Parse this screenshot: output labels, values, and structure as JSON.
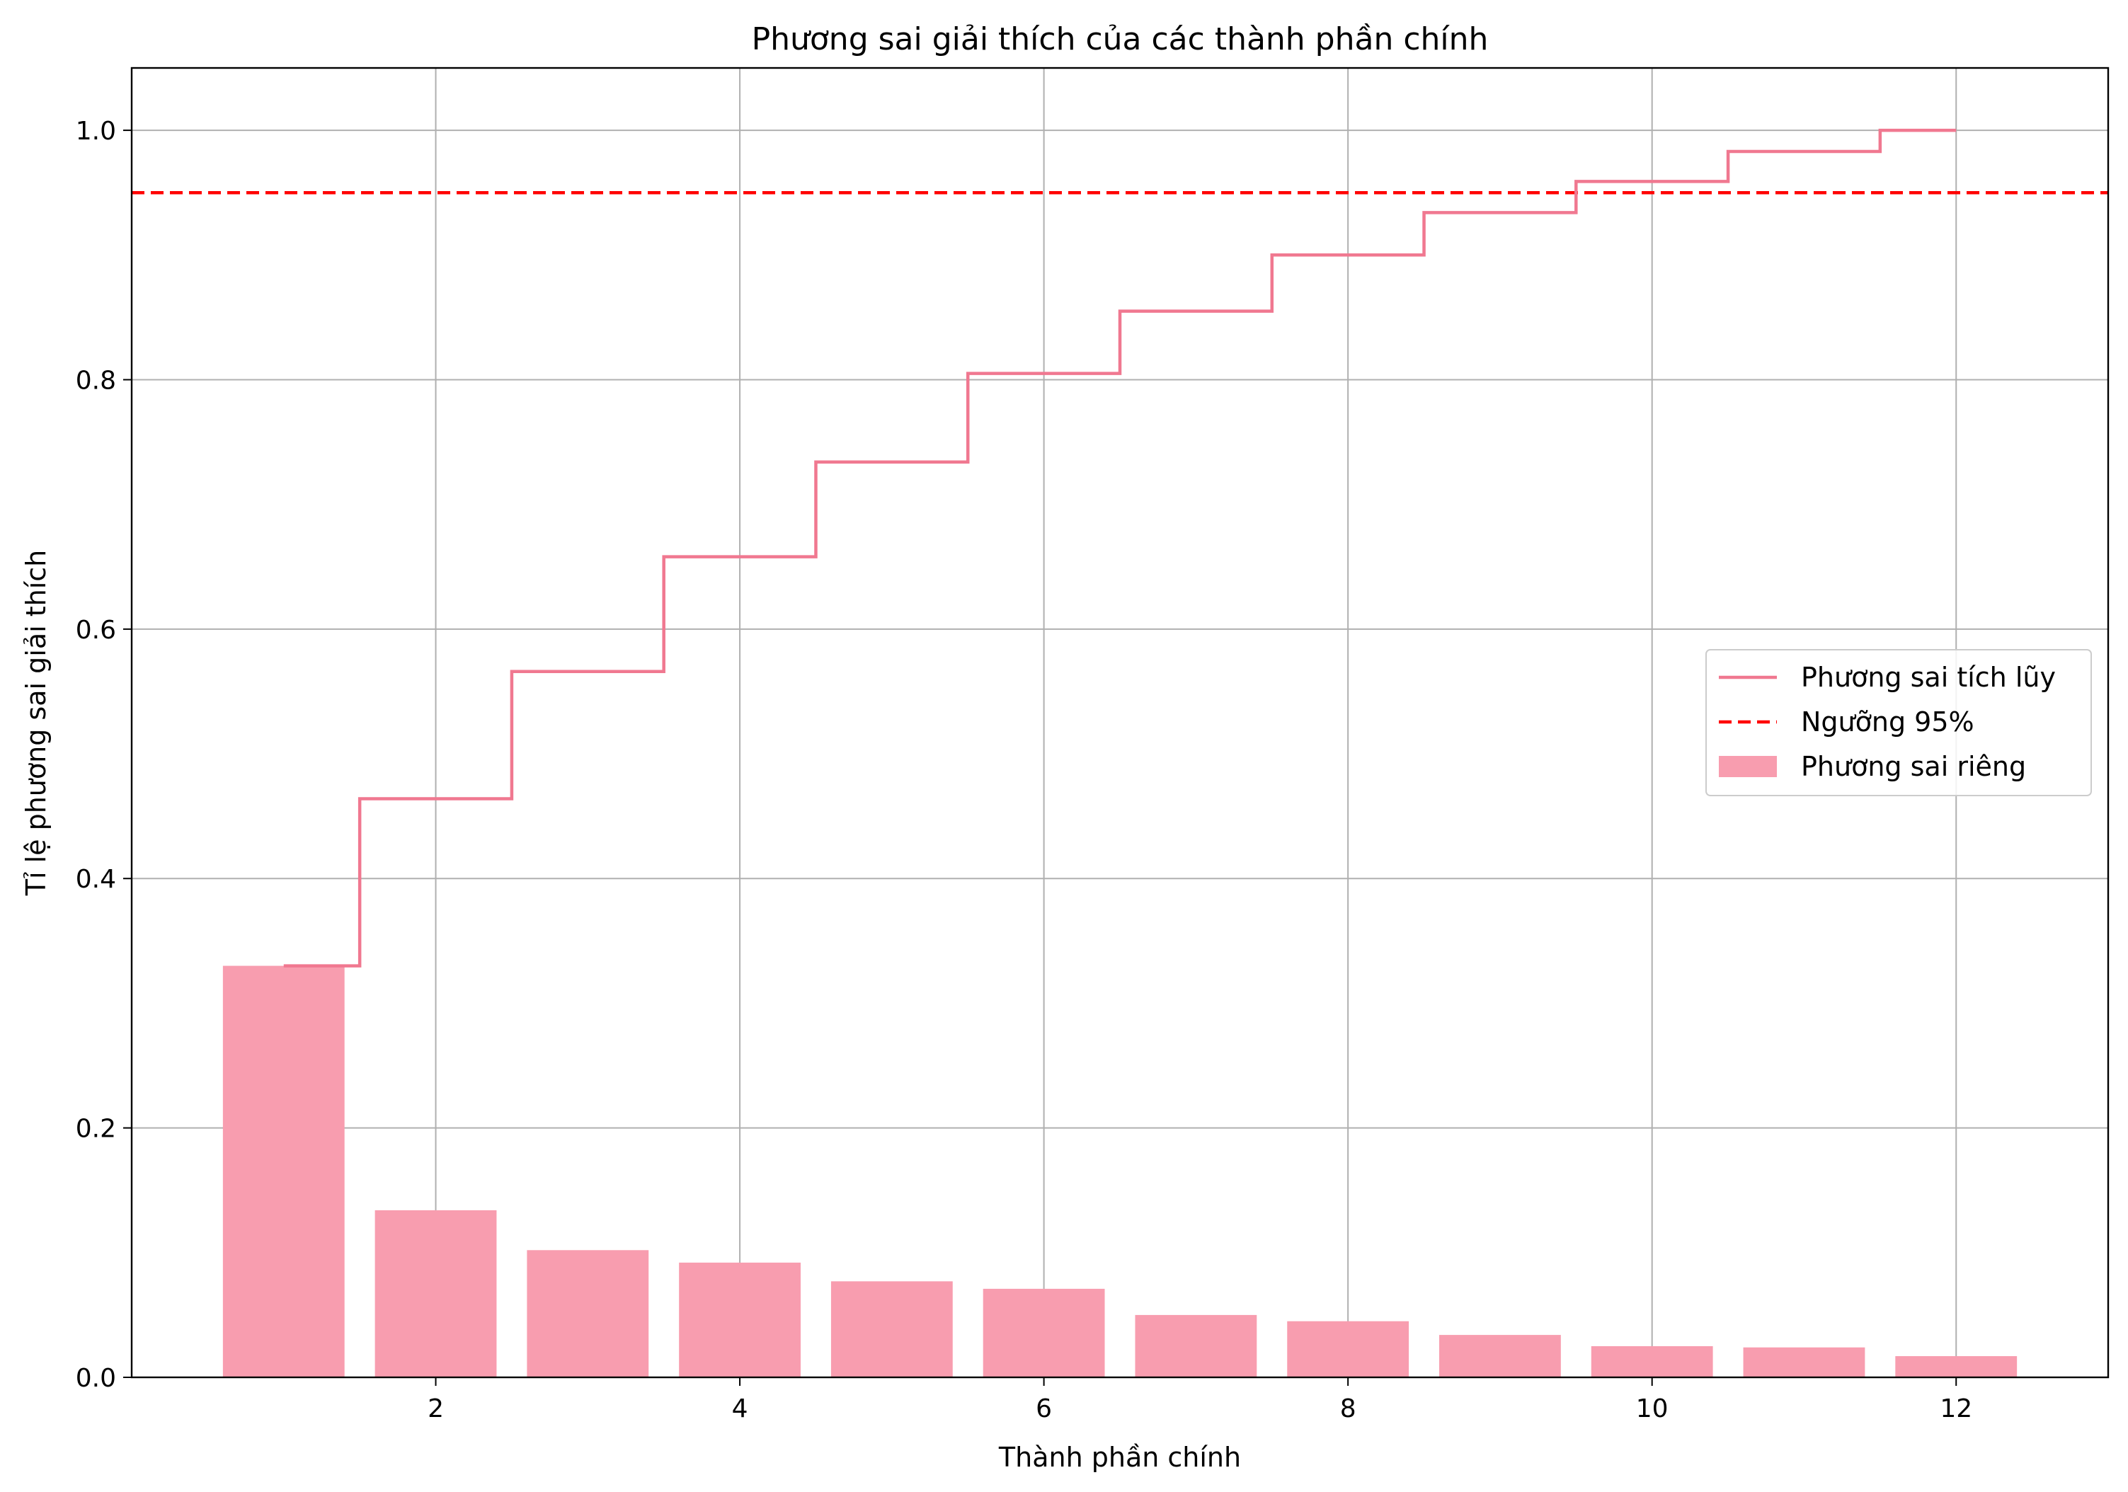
{
  "chart_data": {
    "type": "bar",
    "title": "Phương sai giải thích của các thành phần chính",
    "xlabel": "Thành phần chính",
    "ylabel": "Tỉ lệ phương sai giải thích",
    "x": [
      1,
      2,
      3,
      4,
      5,
      6,
      7,
      8,
      9,
      10,
      11,
      12
    ],
    "xlim": [
      -0.0,
      13.0
    ],
    "ylim": [
      0.0,
      1.05
    ],
    "xticks": [
      2,
      4,
      6,
      8,
      10,
      12
    ],
    "xtick_labels": [
      "2",
      "4",
      "6",
      "8",
      "10",
      "12"
    ],
    "yticks": [
      0.0,
      0.2,
      0.4,
      0.6,
      0.8,
      1.0
    ],
    "ytick_labels": [
      "0.0",
      "0.2",
      "0.4",
      "0.6",
      "0.8",
      "1.0"
    ],
    "grid": true,
    "legend_position": "center-right",
    "series": [
      {
        "name": "Phương sai tích lũy",
        "type": "step",
        "color": "#f07890",
        "values": [
          0.33,
          0.464,
          0.566,
          0.658,
          0.734,
          0.805,
          0.855,
          0.9,
          0.934,
          0.959,
          0.983,
          1.0
        ]
      },
      {
        "name": "Ngưỡng 95%",
        "type": "hline",
        "color": "#ff0000",
        "value": 0.95
      },
      {
        "name": "Phương sai riêng",
        "type": "bar",
        "color": "#f89daf",
        "values": [
          0.33,
          0.134,
          0.102,
          0.092,
          0.077,
          0.071,
          0.05,
          0.045,
          0.034,
          0.025,
          0.024,
          0.017
        ]
      }
    ]
  }
}
